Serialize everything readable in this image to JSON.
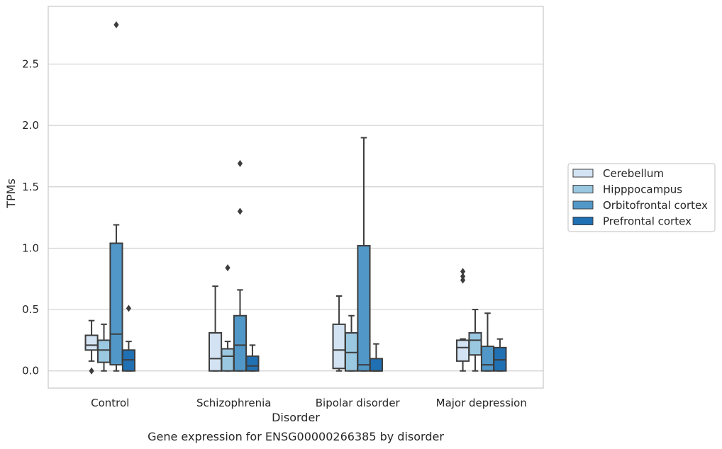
{
  "chart_data": {
    "type": "boxplot",
    "title": "Gene expression for ENSG00000266385 by disorder",
    "xlabel": "Disorder",
    "ylabel": "TPMs",
    "ylim": [
      -0.14,
      2.97
    ],
    "yticks": [
      0.0,
      0.5,
      1.0,
      1.5,
      2.0,
      2.5
    ],
    "ytick_labels": [
      "0.0",
      "0.5",
      "1.0",
      "1.5",
      "2.0",
      "2.5"
    ],
    "grid": "horizontal",
    "legend_position": "right",
    "categories": [
      "Control",
      "Schizophrenia",
      "Bipolar disorder",
      "Major depression"
    ],
    "series": [
      {
        "name": "Cerebellum",
        "color": "#d3e3f3",
        "boxes": [
          {
            "whislo": 0.08,
            "q1": 0.17,
            "med": 0.21,
            "q3": 0.29,
            "whishi": 0.41,
            "fliers": [
              0.0
            ]
          },
          {
            "whislo": 0.0,
            "q1": 0.0,
            "med": 0.1,
            "q3": 0.31,
            "whishi": 0.69,
            "fliers": []
          },
          {
            "whislo": 0.0,
            "q1": 0.02,
            "med": 0.17,
            "q3": 0.38,
            "whishi": 0.61,
            "fliers": []
          },
          {
            "whislo": 0.0,
            "q1": 0.08,
            "med": 0.19,
            "q3": 0.25,
            "whishi": 0.26,
            "fliers": [
              0.74,
              0.77,
              0.81
            ]
          }
        ]
      },
      {
        "name": "Hipppocampus",
        "color": "#9ac8e0",
        "boxes": [
          {
            "whislo": 0.0,
            "q1": 0.07,
            "med": 0.17,
            "q3": 0.25,
            "whishi": 0.38,
            "fliers": []
          },
          {
            "whislo": 0.0,
            "q1": 0.0,
            "med": 0.12,
            "q3": 0.18,
            "whishi": 0.24,
            "fliers": [
              0.84
            ]
          },
          {
            "whislo": 0.0,
            "q1": 0.0,
            "med": 0.15,
            "q3": 0.31,
            "whishi": 0.45,
            "fliers": []
          },
          {
            "whislo": 0.0,
            "q1": 0.13,
            "med": 0.25,
            "q3": 0.31,
            "whishi": 0.5,
            "fliers": []
          }
        ]
      },
      {
        "name": "Orbitofrontal cortex",
        "color": "#5198c8",
        "boxes": [
          {
            "whislo": 0.0,
            "q1": 0.05,
            "med": 0.3,
            "q3": 1.04,
            "whishi": 1.19,
            "fliers": [
              2.82
            ]
          },
          {
            "whislo": 0.0,
            "q1": 0.0,
            "med": 0.21,
            "q3": 0.45,
            "whishi": 0.66,
            "fliers": [
              1.3,
              1.69
            ]
          },
          {
            "whislo": 0.0,
            "q1": 0.0,
            "med": 0.05,
            "q3": 1.02,
            "whishi": 1.9,
            "fliers": []
          },
          {
            "whislo": 0.0,
            "q1": 0.0,
            "med": 0.05,
            "q3": 0.2,
            "whishi": 0.47,
            "fliers": []
          }
        ]
      },
      {
        "name": "Prefrontal cortex",
        "color": "#2070b4",
        "boxes": [
          {
            "whislo": 0.0,
            "q1": 0.0,
            "med": 0.09,
            "q3": 0.17,
            "whishi": 0.24,
            "fliers": [
              0.51
            ]
          },
          {
            "whislo": 0.0,
            "q1": 0.0,
            "med": 0.04,
            "q3": 0.12,
            "whishi": 0.21,
            "fliers": []
          },
          {
            "whislo": 0.0,
            "q1": 0.0,
            "med": 0.0,
            "q3": 0.1,
            "whishi": 0.22,
            "fliers": []
          },
          {
            "whislo": 0.0,
            "q1": 0.0,
            "med": 0.09,
            "q3": 0.19,
            "whishi": 0.26,
            "fliers": []
          }
        ]
      }
    ]
  }
}
